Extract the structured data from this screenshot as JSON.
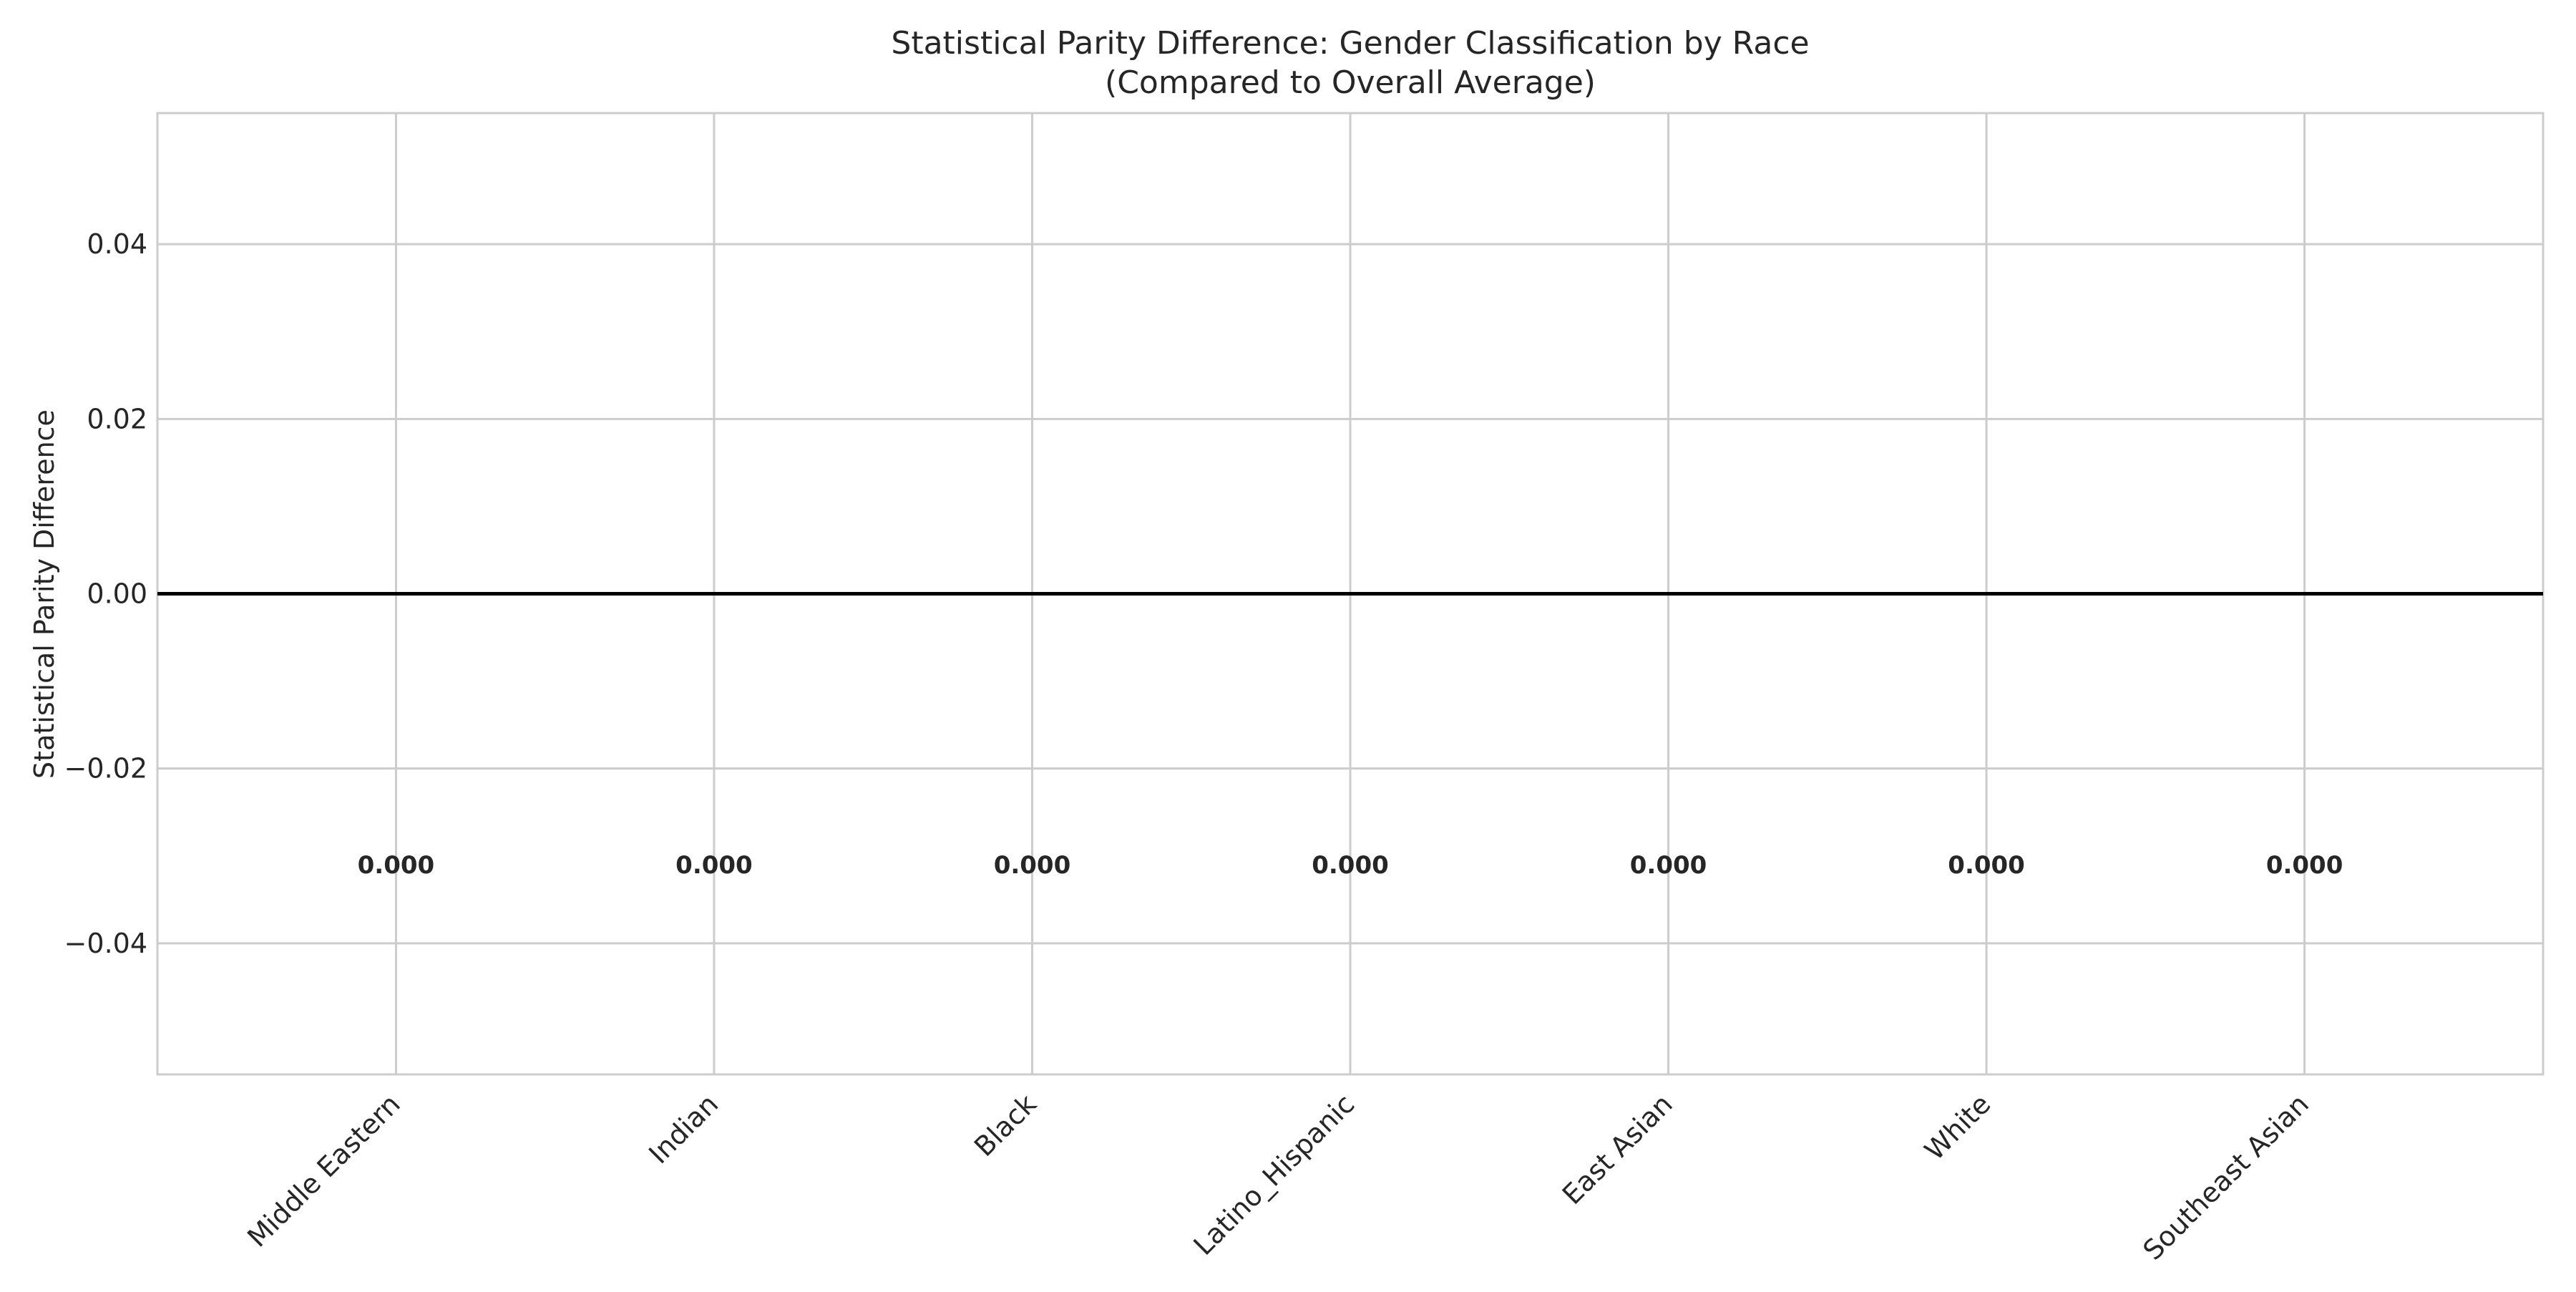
{
  "chart_data": {
    "type": "bar",
    "title": "Statistical Parity Difference: Gender Classification by Race",
    "subtitle": "(Compared to Overall Average)",
    "xlabel": "",
    "ylabel": "Statistical Parity Difference",
    "categories": [
      "Middle Eastern",
      "Indian",
      "Black",
      "Latino_Hispanic",
      "East Asian",
      "White",
      "Southeast Asian"
    ],
    "values": [
      0.0,
      0.0,
      0.0,
      0.0,
      0.0,
      0.0,
      0.0
    ],
    "data_labels": [
      "0.000",
      "0.000",
      "0.000",
      "0.000",
      "0.000",
      "0.000",
      "0.000"
    ],
    "data_label_y": -0.031,
    "ylim": [
      -0.055,
      0.055
    ],
    "yticks": [
      0.04,
      0.02,
      0.0,
      -0.02,
      -0.04
    ],
    "ytick_labels": [
      "0.04",
      "0.02",
      "0.00",
      "−0.02",
      "−0.04"
    ],
    "reference_line_y": 0.0,
    "grid": true,
    "colors": {
      "grid": "#cccccc",
      "axes_edge": "#cccccc",
      "zero_line": "#000000",
      "text": "#262626"
    }
  }
}
